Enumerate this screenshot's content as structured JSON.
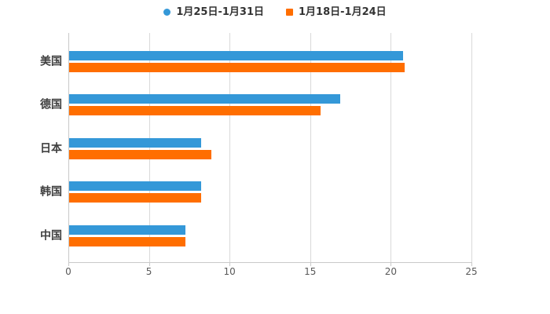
{
  "legend": {
    "items": [
      {
        "label": "1月25日-1月31日",
        "color": "#3498d8",
        "marker": "circle"
      },
      {
        "label": "1月18日-1月24日",
        "color": "#ff6e00",
        "marker": "square"
      }
    ]
  },
  "chart_data": {
    "type": "bar",
    "orientation": "horizontal",
    "title": "",
    "xlabel": "",
    "ylabel": "",
    "categories": [
      "美国",
      "德国",
      "日本",
      "韩国",
      "中国"
    ],
    "series": [
      {
        "name": "1月25日-1月31日",
        "color": "#3498d8",
        "values": [
          20.7,
          16.8,
          8.2,
          8.2,
          7.2
        ]
      },
      {
        "name": "1月18日-1月24日",
        "color": "#ff6e00",
        "values": [
          20.8,
          15.6,
          8.8,
          8.2,
          7.2
        ]
      }
    ],
    "xlim": [
      0,
      25
    ],
    "xticks": [
      0,
      5,
      10,
      15,
      20,
      25
    ],
    "grid": "vertical",
    "legend_position": "top",
    "background": "#ffffff",
    "gridline_color": "#d9d9d9",
    "axis_color": "#c9c9c9",
    "tick_label_color": "#595959",
    "category_label_color": "#404040"
  }
}
